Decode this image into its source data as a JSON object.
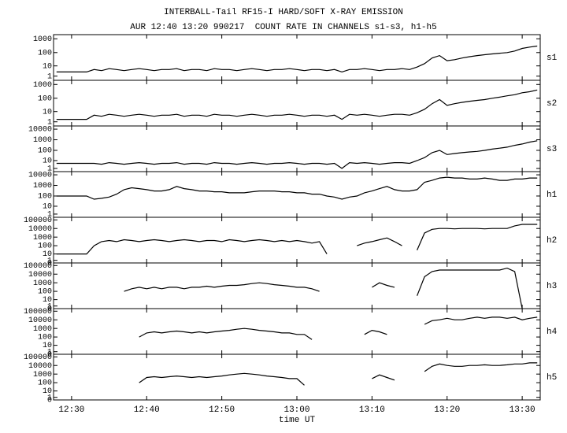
{
  "chart_data": {
    "type": "line",
    "title": "INTERBALL-Tail RF15-I HARD/SOFT X-RAY EMISSION",
    "subtitle": "AUR 12:40 13:20 990217  COUNT RATE IN CHANNELS s1-s3, h1-h5",
    "xlabel": "time UT",
    "color": "#000000",
    "yscale": "log1p",
    "xlim": [
      "12:27:36",
      "13:32:24"
    ],
    "xticks": [
      "12:30",
      "12:40",
      "12:50",
      "13:00",
      "13:10",
      "13:20",
      "13:30"
    ],
    "x": [
      "12:28",
      "12:29",
      "12:30",
      "12:31",
      "12:32",
      "12:33",
      "12:34",
      "12:35",
      "12:36",
      "12:37",
      "12:38",
      "12:39",
      "12:40",
      "12:41",
      "12:42",
      "12:43",
      "12:44",
      "12:45",
      "12:46",
      "12:47",
      "12:48",
      "12:49",
      "12:50",
      "12:51",
      "12:52",
      "12:53",
      "12:54",
      "12:55",
      "12:56",
      "12:57",
      "12:58",
      "12:59",
      "13:00",
      "13:01",
      "13:02",
      "13:03",
      "13:04",
      "13:05",
      "13:06",
      "13:07",
      "13:08",
      "13:09",
      "13:10",
      "13:11",
      "13:12",
      "13:13",
      "13:14",
      "13:15",
      "13:16",
      "13:17",
      "13:18",
      "13:19",
      "13:20",
      "13:21",
      "13:22",
      "13:23",
      "13:24",
      "13:25",
      "13:26",
      "13:27",
      "13:28",
      "13:29",
      "13:30",
      "13:31",
      "13:32"
    ],
    "panels": [
      {
        "name": "s1",
        "ylim": [
          0,
          2000
        ],
        "yticks": [
          1,
          10,
          100,
          1000
        ],
        "values": [
          3,
          3,
          3,
          3,
          3,
          5,
          4,
          6,
          5,
          4,
          5,
          6,
          5,
          4,
          5,
          5,
          6,
          4,
          5,
          5,
          4,
          6,
          5,
          5,
          4,
          5,
          6,
          5,
          4,
          5,
          5,
          6,
          5,
          4,
          5,
          5,
          4,
          5,
          3,
          5,
          5,
          6,
          5,
          4,
          5,
          5,
          6,
          5,
          8,
          15,
          40,
          60,
          25,
          30,
          40,
          50,
          60,
          70,
          80,
          90,
          100,
          130,
          200,
          250,
          300
        ]
      },
      {
        "name": "s2",
        "ylim": [
          0,
          2000
        ],
        "yticks": [
          1,
          10,
          100,
          1000
        ],
        "values": [
          2,
          2,
          2,
          2,
          2,
          5,
          4,
          6,
          5,
          4,
          5,
          6,
          5,
          4,
          5,
          5,
          6,
          4,
          5,
          5,
          4,
          6,
          5,
          5,
          4,
          5,
          6,
          5,
          4,
          5,
          5,
          6,
          5,
          4,
          5,
          5,
          4,
          5,
          2,
          6,
          5,
          6,
          5,
          4,
          5,
          6,
          6,
          5,
          8,
          15,
          40,
          80,
          30,
          40,
          50,
          60,
          70,
          80,
          100,
          120,
          150,
          180,
          250,
          300,
          400
        ]
      },
      {
        "name": "s3",
        "ylim": [
          0,
          20000
        ],
        "yticks": [
          1,
          10,
          100,
          1000,
          10000
        ],
        "values": [
          5,
          5,
          5,
          5,
          5,
          5,
          4,
          6,
          5,
          4,
          5,
          6,
          5,
          4,
          5,
          5,
          6,
          4,
          5,
          5,
          4,
          6,
          5,
          5,
          4,
          5,
          6,
          5,
          4,
          5,
          5,
          6,
          5,
          4,
          5,
          5,
          4,
          5,
          1,
          6,
          5,
          6,
          5,
          4,
          5,
          6,
          6,
          5,
          10,
          20,
          60,
          100,
          40,
          50,
          60,
          70,
          80,
          100,
          130,
          160,
          200,
          300,
          400,
          600,
          800
        ]
      },
      {
        "name": "h1",
        "ylim": [
          0,
          20000
        ],
        "yticks": [
          1,
          10,
          100,
          1000,
          10000
        ],
        "values": [
          100,
          100,
          100,
          100,
          100,
          50,
          60,
          80,
          150,
          400,
          600,
          500,
          400,
          300,
          300,
          400,
          800,
          500,
          400,
          300,
          300,
          250,
          250,
          200,
          200,
          200,
          250,
          300,
          300,
          300,
          250,
          250,
          200,
          200,
          150,
          150,
          100,
          80,
          50,
          80,
          100,
          200,
          300,
          500,
          800,
          400,
          300,
          300,
          400,
          2000,
          3000,
          5000,
          6000,
          5000,
          5000,
          4000,
          4000,
          5000,
          4000,
          3000,
          3000,
          4000,
          4000,
          5000,
          5000
        ]
      },
      {
        "name": "h2",
        "ylim": [
          0,
          200000
        ],
        "yticks": [
          0,
          1,
          10,
          100,
          1000,
          10000,
          100000
        ],
        "values": [
          10,
          10,
          10,
          10,
          10,
          100,
          300,
          400,
          300,
          500,
          400,
          300,
          400,
          500,
          400,
          300,
          400,
          500,
          400,
          300,
          400,
          400,
          300,
          500,
          400,
          300,
          400,
          500,
          400,
          300,
          400,
          300,
          400,
          300,
          200,
          300,
          10,
          null,
          null,
          null,
          100,
          200,
          300,
          500,
          800,
          300,
          100,
          null,
          30,
          3000,
          8000,
          10000,
          10000,
          9000,
          10000,
          10000,
          10000,
          9000,
          10000,
          10000,
          10000,
          20000,
          30000,
          30000,
          30000
        ]
      },
      {
        "name": "h3",
        "ylim": [
          0,
          200000
        ],
        "yticks": [
          0,
          1,
          10,
          100,
          1000,
          10000,
          100000
        ],
        "values": [
          null,
          null,
          null,
          null,
          null,
          null,
          null,
          null,
          null,
          100,
          200,
          300,
          200,
          300,
          200,
          300,
          300,
          200,
          300,
          300,
          400,
          300,
          400,
          500,
          500,
          600,
          800,
          1000,
          800,
          600,
          500,
          400,
          300,
          300,
          200,
          100,
          null,
          null,
          null,
          null,
          null,
          null,
          300,
          1000,
          500,
          300,
          null,
          null,
          30,
          5000,
          20000,
          30000,
          30000,
          30000,
          30000,
          30000,
          30000,
          30000,
          30000,
          30000,
          50000,
          20000,
          0,
          null,
          null
        ]
      },
      {
        "name": "h4",
        "ylim": [
          0,
          200000
        ],
        "yticks": [
          0,
          1,
          10,
          100,
          1000,
          10000,
          100000
        ],
        "values": [
          null,
          null,
          null,
          null,
          null,
          null,
          null,
          null,
          null,
          null,
          null,
          100,
          300,
          400,
          300,
          400,
          500,
          400,
          300,
          400,
          300,
          400,
          500,
          600,
          800,
          1000,
          800,
          600,
          500,
          400,
          300,
          300,
          200,
          200,
          50,
          null,
          null,
          null,
          null,
          null,
          null,
          200,
          600,
          400,
          200,
          null,
          null,
          null,
          null,
          3000,
          8000,
          10000,
          15000,
          10000,
          10000,
          15000,
          20000,
          15000,
          20000,
          20000,
          15000,
          20000,
          10000,
          15000,
          20000
        ]
      },
      {
        "name": "h5",
        "ylim": [
          0,
          200000
        ],
        "yticks": [
          0,
          1,
          10,
          100,
          1000,
          10000,
          100000
        ],
        "values": [
          null,
          null,
          null,
          null,
          null,
          null,
          null,
          null,
          null,
          null,
          null,
          100,
          400,
          500,
          400,
          500,
          600,
          500,
          400,
          500,
          400,
          500,
          600,
          800,
          1000,
          1200,
          1000,
          800,
          600,
          500,
          400,
          300,
          300,
          50,
          null,
          null,
          null,
          null,
          null,
          null,
          null,
          null,
          300,
          800,
          400,
          200,
          null,
          null,
          null,
          2000,
          8000,
          15000,
          10000,
          8000,
          8000,
          10000,
          10000,
          12000,
          10000,
          10000,
          12000,
          15000,
          15000,
          20000,
          20000
        ]
      }
    ]
  }
}
